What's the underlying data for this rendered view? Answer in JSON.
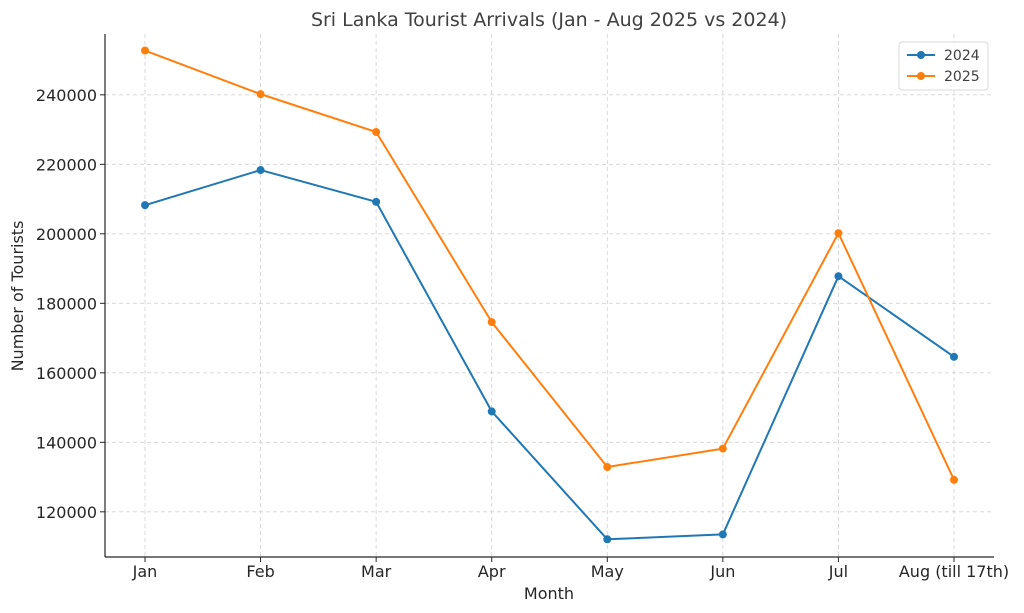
{
  "chart_data": {
    "type": "line",
    "title": "Sri Lanka Tourist Arrivals (Jan - Aug 2025 vs 2024)",
    "xlabel": "Month",
    "ylabel": "Number of Tourists",
    "categories": [
      "Jan",
      "Feb",
      "Mar",
      "Apr",
      "May",
      "Jun",
      "Jul",
      "Aug (till 17th)"
    ],
    "ylim": [
      107000,
      257500
    ],
    "yticks": [
      120000,
      140000,
      160000,
      180000,
      200000,
      220000,
      240000
    ],
    "grid": true,
    "legend_position": "top-right",
    "series": [
      {
        "name": "2024",
        "color": "#1f77b4",
        "values": [
          208250,
          218350,
          209200,
          148900,
          112100,
          113500,
          187800,
          164600
        ]
      },
      {
        "name": "2025",
        "color": "#ff7f0e",
        "values": [
          252750,
          240200,
          229300,
          174600,
          132900,
          138200,
          200200,
          129200
        ]
      }
    ]
  }
}
